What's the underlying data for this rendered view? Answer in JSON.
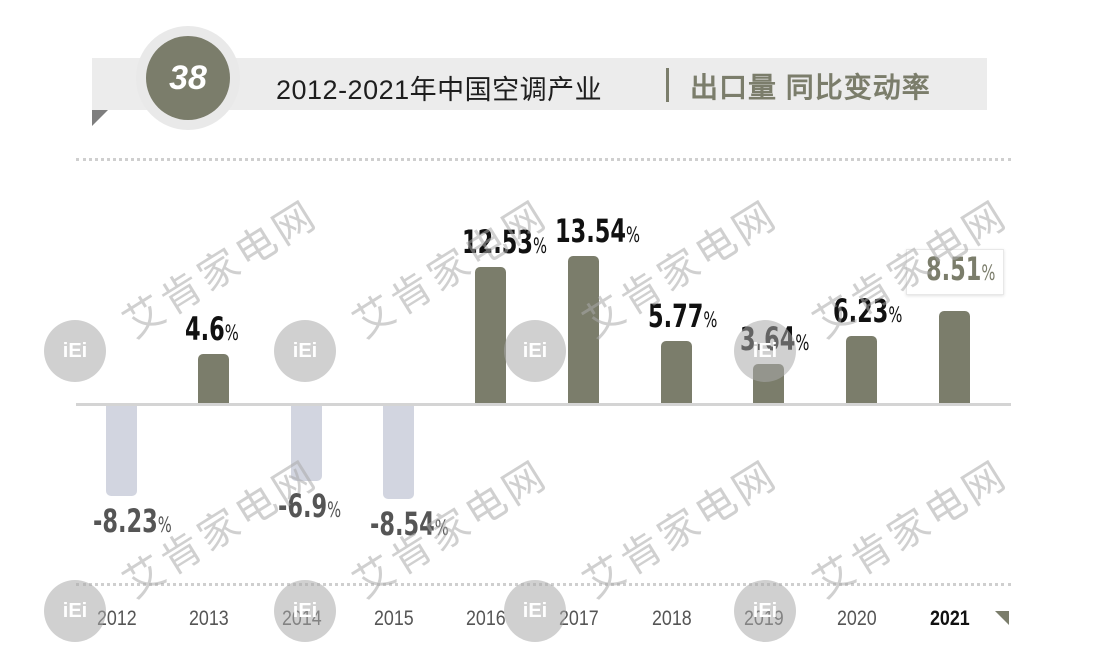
{
  "header": {
    "badge_number": "38",
    "title": "2012-2021年中国空调产业",
    "subtitle": "出口量 同比变动率"
  },
  "watermark": {
    "text": "艾肯家电网",
    "logo_text": "iEi"
  },
  "colors": {
    "positive_bar": "#7b7d6b",
    "negative_bar": "#d2d5e0",
    "highlight_text": "#7b7d6b",
    "axis": "#d4d4d4"
  },
  "chart_data": {
    "type": "bar",
    "title": "2012-2021年中国空调产业 出口量 同比变动率",
    "categories": [
      "2012",
      "2013",
      "2014",
      "2015",
      "2016",
      "2017",
      "2018",
      "2019",
      "2020",
      "2021"
    ],
    "values": [
      -8.23,
      4.6,
      -6.9,
      -8.54,
      12.53,
      13.54,
      5.77,
      3.64,
      6.23,
      8.51
    ],
    "unit": "%",
    "labels": [
      "-8.23",
      "4.6",
      "-6.9",
      "-8.54",
      "12.53",
      "13.54",
      "5.77",
      "3.64",
      "6.23",
      "8.51"
    ],
    "xlabel": "",
    "ylabel": "",
    "highlight": "2021",
    "grid": false,
    "legend": "none"
  }
}
